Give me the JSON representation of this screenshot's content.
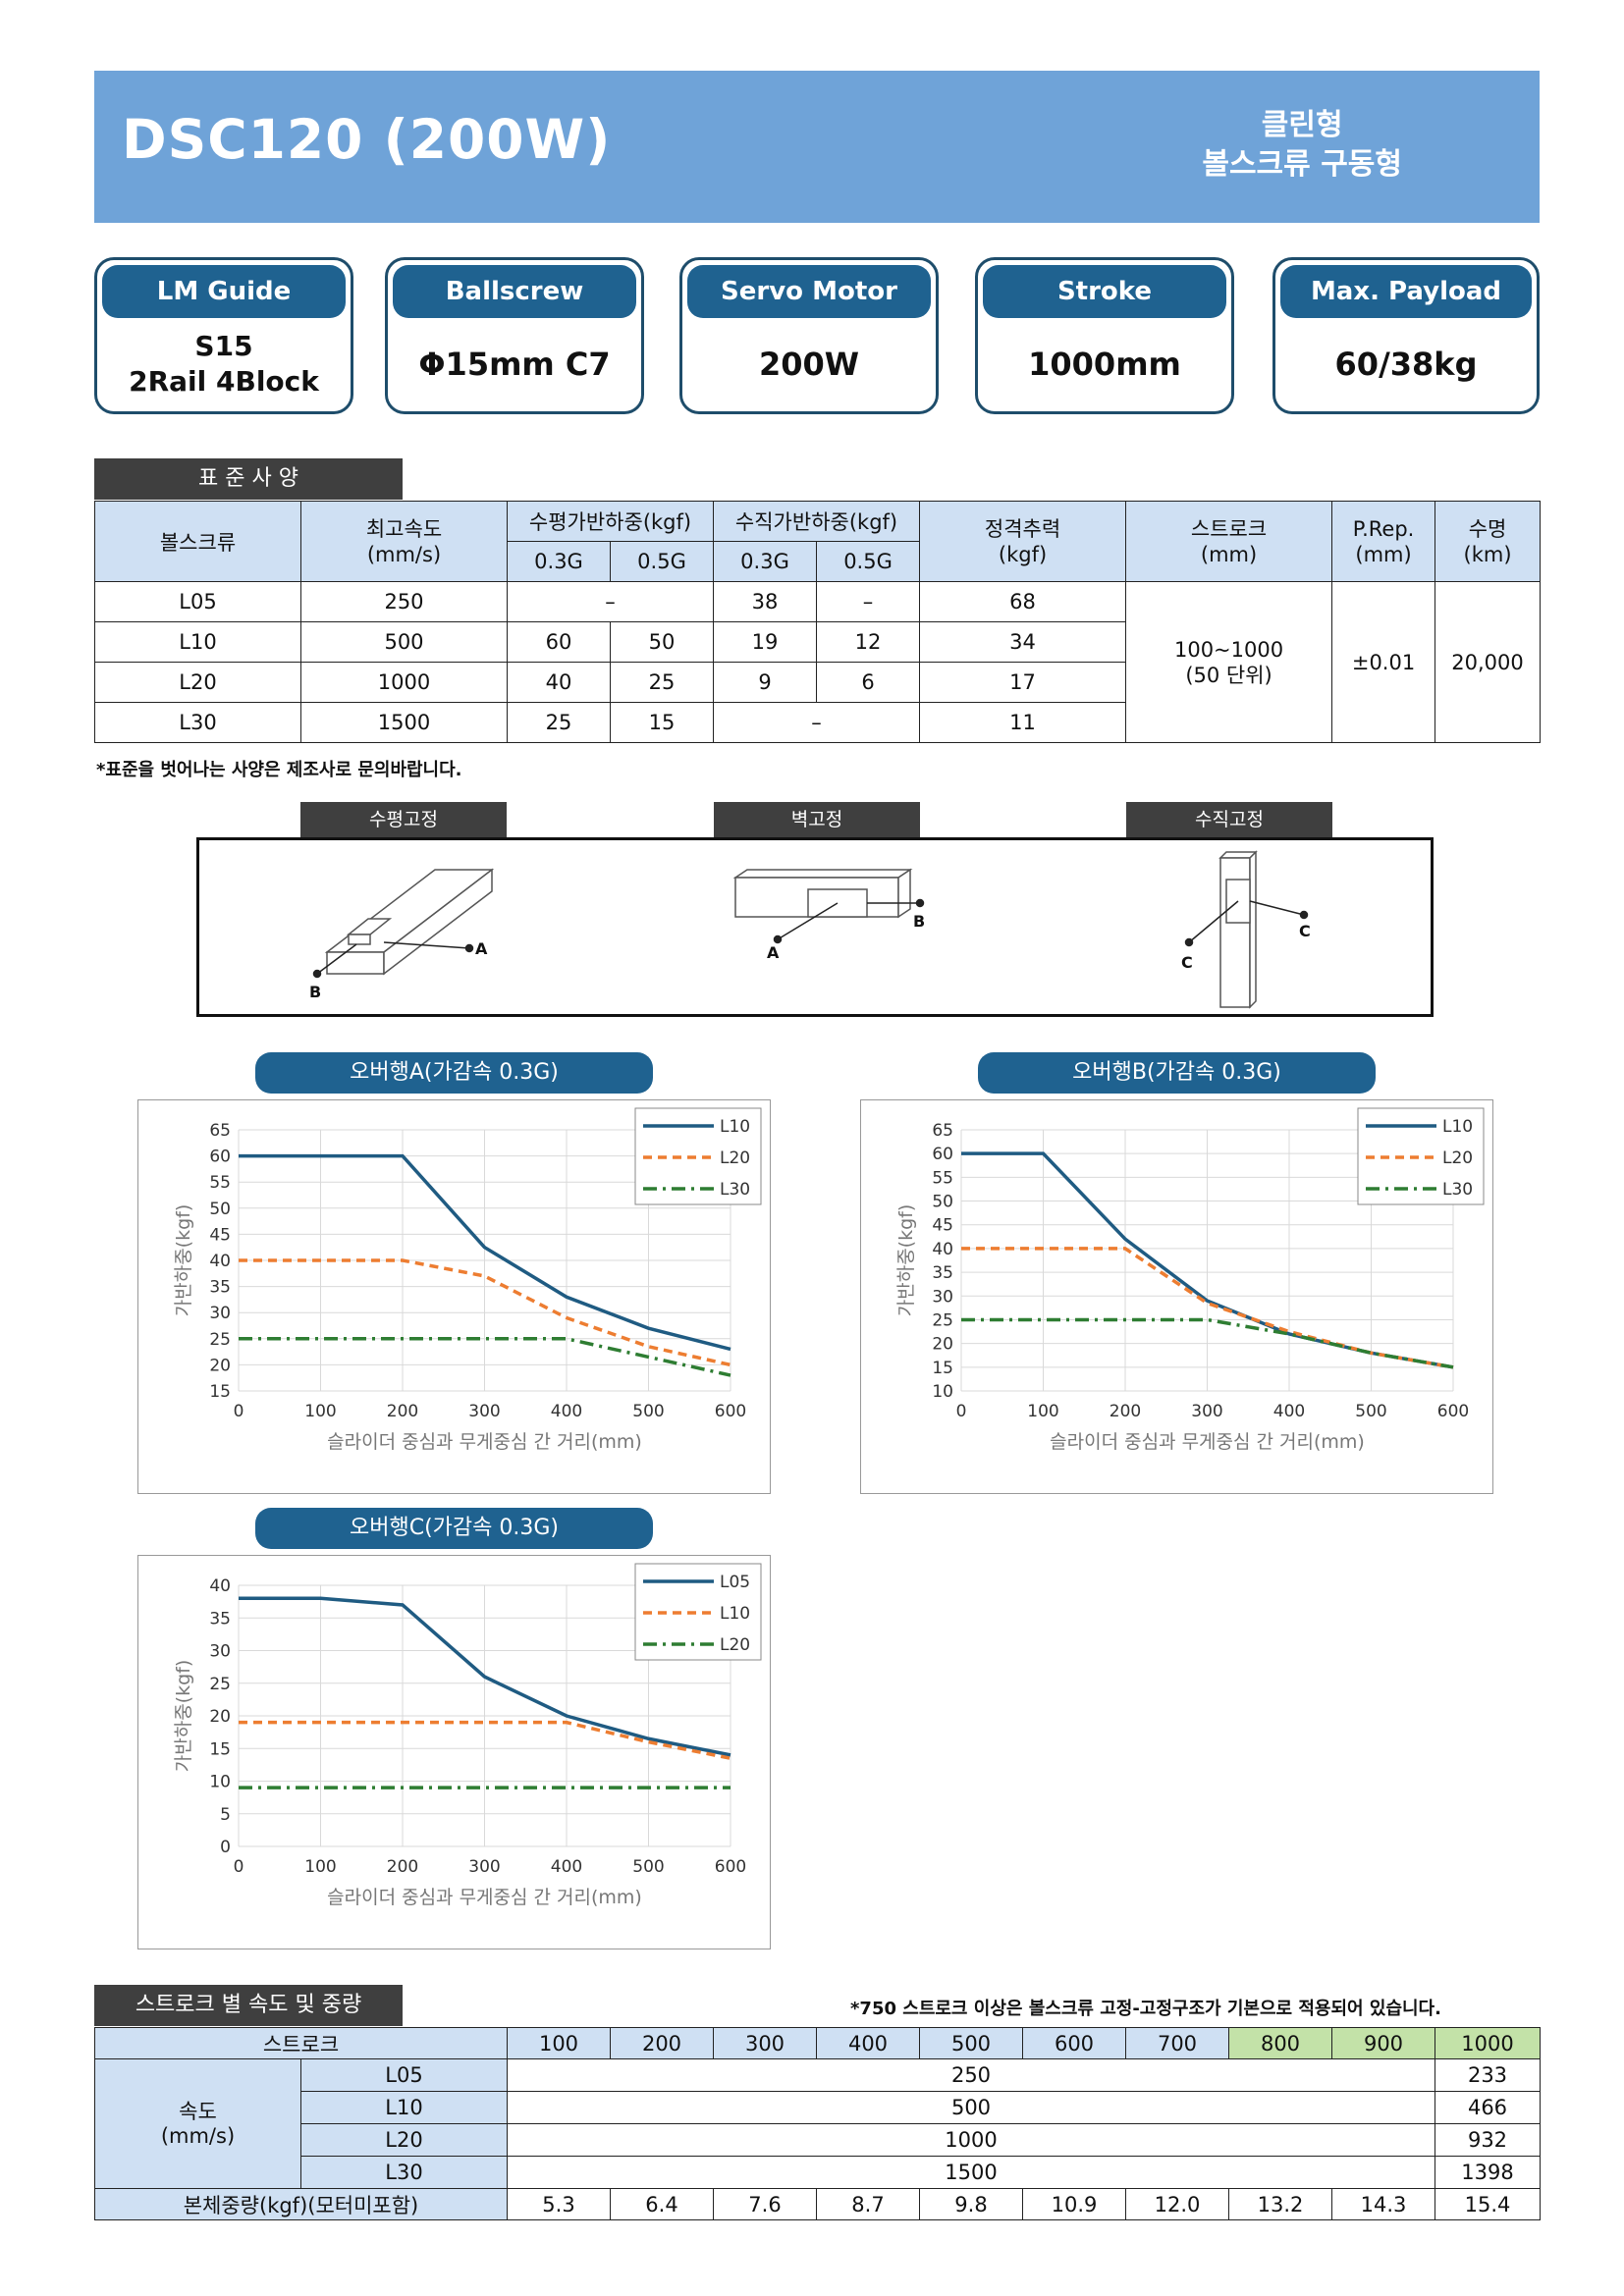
{
  "header": {
    "title": "DSC120 (200W)",
    "subtitle_line1": "클린형",
    "subtitle_line2": "볼스크류 구동형"
  },
  "specs": [
    {
      "label": "LM Guide",
      "value": "S15\n2Rail 4Block"
    },
    {
      "label": "Ballscrew",
      "value": "Φ15mm C7"
    },
    {
      "label": "Servo Motor",
      "value": "200W"
    },
    {
      "label": "Stroke",
      "value": "1000mm"
    },
    {
      "label": "Max. Payload",
      "value": "60/38kg"
    }
  ],
  "standard": {
    "tab": "표 준 사 양",
    "headers": {
      "ballscrew": "볼스크류",
      "max_speed": "최고속도\n(mm/s)",
      "horizontal": "수평가반하중(kgf)",
      "vertical": "수직가반하중(kgf)",
      "g03": "0.3G",
      "g05": "0.5G",
      "thrust": "정격추력\n(kgf)",
      "stroke": "스트로크\n(mm)",
      "prep": "P.Rep.\n(mm)",
      "life": "수명\n(km)"
    },
    "rows": [
      {
        "model": "L05",
        "speed": "250",
        "h03": "–",
        "h05": "",
        "v03": "38",
        "v05": "–",
        "thrust": "68"
      },
      {
        "model": "L10",
        "speed": "500",
        "h03": "60",
        "h05": "50",
        "v03": "19",
        "v05": "12",
        "thrust": "34"
      },
      {
        "model": "L20",
        "speed": "1000",
        "h03": "40",
        "h05": "25",
        "v03": "9",
        "v05": "6",
        "thrust": "17"
      },
      {
        "model": "L30",
        "speed": "1500",
        "h03": "25",
        "h05": "15",
        "v03": "–",
        "v05": "",
        "thrust": "11"
      }
    ],
    "stroke_value": "100~1000\n(50 단위)",
    "prep_value": "±0.01",
    "life_value": "20,000",
    "note": "*표준을 벗어나는 사양은 제조사로 문의바랍니다."
  },
  "mounting": {
    "labels": [
      "수평고정",
      "벽고정",
      "수직고정"
    ],
    "points": {
      "a": "A",
      "b": "B",
      "c": "C"
    }
  },
  "chart_data": [
    {
      "type": "line",
      "title": "오버행A(가감속 0.3G)",
      "xlabel": "슬라이더 중심과 무게중심 간 거리(mm)",
      "ylabel": "가반하중(kgf)",
      "x": [
        0,
        100,
        200,
        300,
        400,
        500,
        600
      ],
      "xlim": [
        0,
        600
      ],
      "ylim": [
        15,
        65
      ],
      "yticks": [
        15,
        20,
        25,
        30,
        35,
        40,
        45,
        50,
        55,
        60,
        65
      ],
      "grid": true,
      "legend": "top-right",
      "series": [
        {
          "name": "L10",
          "color": "#1f5b82",
          "style": "solid",
          "values": [
            60,
            60,
            60,
            42.5,
            33,
            27,
            23
          ]
        },
        {
          "name": "L20",
          "color": "#ed7d31",
          "style": "dash",
          "values": [
            40,
            40,
            40,
            37,
            29,
            23.5,
            20
          ]
        },
        {
          "name": "L30",
          "color": "#2e7d32",
          "style": "dashdot",
          "values": [
            25,
            25,
            25,
            25,
            25,
            21.5,
            18
          ]
        }
      ]
    },
    {
      "type": "line",
      "title": "오버행B(가감속 0.3G)",
      "xlabel": "슬라이더 중심과 무게중심 간 거리(mm)",
      "ylabel": "가반하중(kgf)",
      "x": [
        0,
        100,
        200,
        300,
        400,
        500,
        600
      ],
      "xlim": [
        0,
        600
      ],
      "ylim": [
        10,
        65
      ],
      "yticks": [
        10,
        15,
        20,
        25,
        30,
        35,
        40,
        45,
        50,
        55,
        60,
        65
      ],
      "grid": true,
      "legend": "top-right",
      "series": [
        {
          "name": "L10",
          "color": "#1f5b82",
          "style": "solid",
          "values": [
            60,
            60,
            42,
            29,
            22,
            18,
            15
          ]
        },
        {
          "name": "L20",
          "color": "#ed7d31",
          "style": "dash",
          "values": [
            40,
            40,
            40,
            28.5,
            22.5,
            18,
            15
          ]
        },
        {
          "name": "L30",
          "color": "#2e7d32",
          "style": "dashdot",
          "values": [
            25,
            25,
            25,
            25,
            22,
            18,
            15
          ]
        }
      ]
    },
    {
      "type": "line",
      "title": "오버행C(가감속 0.3G)",
      "xlabel": "슬라이더 중심과 무게중심 간 거리(mm)",
      "ylabel": "가반하중(kgf)",
      "x": [
        0,
        100,
        200,
        300,
        400,
        500,
        600
      ],
      "xlim": [
        0,
        600
      ],
      "ylim": [
        0,
        40
      ],
      "yticks": [
        0,
        5,
        10,
        15,
        20,
        25,
        30,
        35,
        40
      ],
      "grid": true,
      "legend": "top-right",
      "series": [
        {
          "name": "L05",
          "color": "#1f5b82",
          "style": "solid",
          "values": [
            38,
            38,
            37,
            26,
            20,
            16.5,
            14
          ]
        },
        {
          "name": "L10",
          "color": "#ed7d31",
          "style": "dash",
          "values": [
            19,
            19,
            19,
            19,
            19,
            16,
            13.5
          ]
        },
        {
          "name": "L20",
          "color": "#2e7d32",
          "style": "dashdot",
          "values": [
            9,
            9,
            9,
            9,
            9,
            9,
            9
          ]
        }
      ]
    }
  ],
  "speed_weight": {
    "tab": "스트로크 별 속도 및 중량",
    "note": "*750 스트로크 이상은 볼스크류 고정-고정구조가 기본으로 적용되어 있습니다.",
    "stroke_label": "스트로크",
    "strokes": [
      "100",
      "200",
      "300",
      "400",
      "500",
      "600",
      "700",
      "800",
      "900",
      "1000"
    ],
    "speed_label": "속도\n(mm/s)",
    "speed_rows": [
      {
        "model": "L05",
        "speed": "250",
        "speed_1000": "233"
      },
      {
        "model": "L10",
        "speed": "500",
        "speed_1000": "466"
      },
      {
        "model": "L20",
        "speed": "1000",
        "speed_1000": "932"
      },
      {
        "model": "L30",
        "speed": "1500",
        "speed_1000": "1398"
      }
    ],
    "weight_label": "본체중량(kgf)(모터미포함)",
    "weights": [
      "5.3",
      "6.4",
      "7.6",
      "8.7",
      "9.8",
      "10.9",
      "12.0",
      "13.2",
      "14.3",
      "15.4"
    ]
  }
}
